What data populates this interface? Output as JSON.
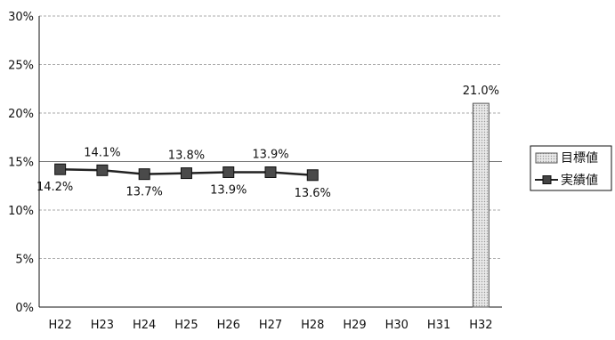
{
  "chart_data": {
    "type": "bar+line",
    "categories": [
      "H22",
      "H23",
      "H24",
      "H25",
      "H26",
      "H27",
      "H28",
      "H29",
      "H30",
      "H31",
      "H32"
    ],
    "series": [
      {
        "name": "目標値",
        "type": "bar",
        "values": [
          null,
          null,
          null,
          null,
          null,
          null,
          null,
          null,
          null,
          null,
          21.0
        ],
        "labels": [
          "",
          "",
          "",
          "",
          "",
          "",
          "",
          "",
          "",
          "",
          "21.0%"
        ],
        "color": "#d9d9d9"
      },
      {
        "name": "実績値",
        "type": "line",
        "values": [
          14.2,
          14.1,
          13.7,
          13.8,
          13.9,
          13.9,
          13.6,
          null,
          null,
          null,
          null
        ],
        "labels": [
          "14.2%",
          "14.1%",
          "13.7%",
          "13.8%",
          "13.9%",
          "13.9%",
          "13.6%",
          "",
          "",
          "",
          ""
        ],
        "label_positions": [
          "below",
          "above",
          "below",
          "above",
          "below",
          "above",
          "below",
          "",
          "",
          "",
          ""
        ],
        "color": "#222222"
      }
    ],
    "yticks": [
      "0%",
      "5%",
      "10%",
      "15%",
      "20%",
      "25%",
      "30%"
    ],
    "ylim": [
      0,
      30
    ],
    "grid": true,
    "legend_position": "right"
  }
}
